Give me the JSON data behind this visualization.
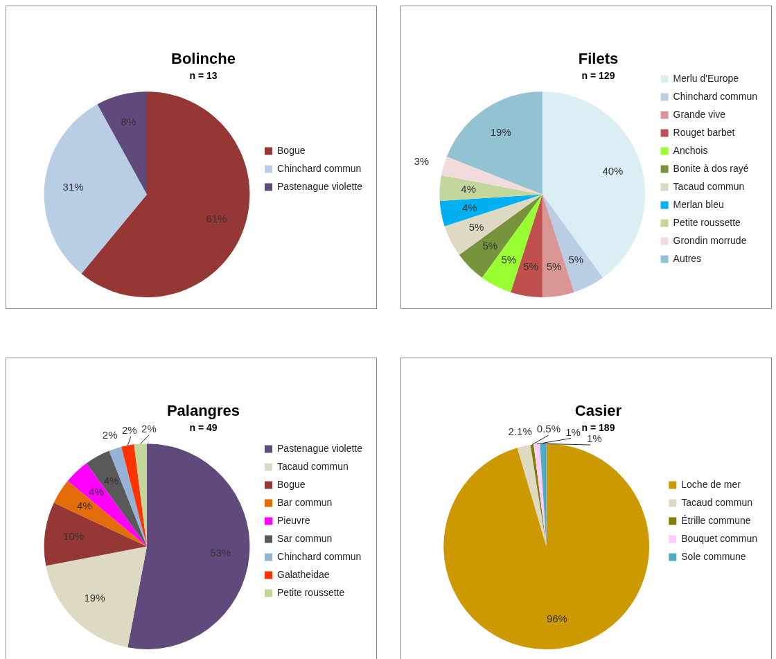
{
  "chart_data": [
    {
      "type": "pie",
      "title": "Bolinche",
      "subtitle": "n = 13",
      "legend": "right",
      "categories": [
        "Bogue",
        "Chinchard commun",
        "Pastenague violette"
      ],
      "values": [
        61,
        31,
        8
      ],
      "colors": [
        "#953735",
        "#b9cde5",
        "#604a7b"
      ],
      "value_labels": [
        "61%",
        "31%",
        "8%"
      ]
    },
    {
      "type": "pie",
      "title": "Filets",
      "subtitle": "n = 129",
      "legend": "right",
      "categories": [
        "Merlu d'Europe",
        "Chinchard commun",
        "Grande vive",
        "Rouget barbet",
        "Anchois",
        "Bonite à dos rayé",
        "Tacaud commun",
        "Merlan bleu",
        "Petite roussette",
        "Grondin morrude",
        "Autres"
      ],
      "values": [
        40,
        5,
        5,
        5,
        5,
        5,
        5,
        4,
        4,
        3,
        19
      ],
      "colors": [
        "#dbeef4",
        "#b9cde5",
        "#d99694",
        "#c0504d",
        "#99ff33",
        "#77933c",
        "#ddd9c3",
        "#00b0f0",
        "#c3d69b",
        "#f2dcdb",
        "#93c3d3"
      ],
      "value_labels": [
        "40%",
        "5%",
        "5%",
        "5%",
        "5%",
        "5%",
        "5%",
        "4%",
        "4%",
        "3%",
        "19%"
      ]
    },
    {
      "type": "pie",
      "title": "Palangres",
      "subtitle": "n = 49",
      "legend": "right",
      "categories": [
        "Pastenague violette",
        "Tacaud commun",
        "Bogue",
        "Bar commun",
        "Pieuvre",
        "Sar commun",
        "Chinchard commun",
        "Galatheidae",
        "Petite roussette"
      ],
      "values": [
        53,
        19,
        10,
        4,
        4,
        4,
        2,
        2,
        2
      ],
      "colors": [
        "#604a7b",
        "#ddd9c3",
        "#953735",
        "#e36c09",
        "#ff00ff",
        "#595959",
        "#95b3d7",
        "#ff3300",
        "#c3d69b"
      ],
      "value_labels": [
        "53%",
        "19%",
        "10%",
        "4%",
        "4%",
        "4%",
        "2%",
        "2%",
        "2%"
      ]
    },
    {
      "type": "pie",
      "title": "Casier",
      "subtitle": "n = 189",
      "legend": "right",
      "categories": [
        "Loche de mer",
        "Tacaud commun",
        "Étrille commune",
        "Bouquet commun",
        "Sole commune"
      ],
      "values": [
        96,
        2.1,
        0.5,
        1,
        1
      ],
      "colors": [
        "#cc9900",
        "#ddd9c3",
        "#7f7f00",
        "#ffccff",
        "#4bacc6"
      ],
      "value_labels": [
        "96%",
        "2.1%",
        "0.5%",
        "1%",
        "1%"
      ]
    }
  ]
}
